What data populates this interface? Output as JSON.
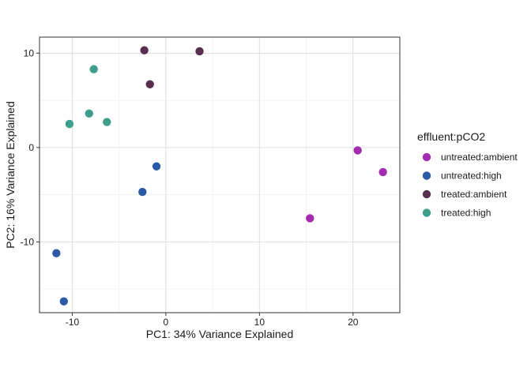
{
  "chart_data": {
    "type": "scatter",
    "xlabel": "PC1: 34% Variance Explained",
    "ylabel": "PC2: 16% Variance Explained",
    "xlim": [
      -13.5,
      25
    ],
    "ylim": [
      -17.5,
      11.7
    ],
    "xticks": [
      -10,
      0,
      10,
      20
    ],
    "yticks": [
      -10,
      0,
      10
    ],
    "xtick_labels": [
      "-10",
      "0",
      "10",
      "20"
    ],
    "ytick_labels": [
      "-10",
      "0",
      "10"
    ],
    "grid": true,
    "legend": {
      "title": "effluent:pCO2",
      "placement": "right"
    },
    "series": [
      {
        "name": "untreated:ambient",
        "color": "#A32CB0",
        "points": [
          [
            15.4,
            -7.5
          ],
          [
            20.5,
            -0.3
          ],
          [
            23.2,
            -2.6
          ]
        ]
      },
      {
        "name": "untreated:high",
        "color": "#2D5AA6",
        "points": [
          [
            -1.0,
            -2.0
          ],
          [
            -2.5,
            -4.7
          ],
          [
            -11.7,
            -11.2
          ],
          [
            -10.9,
            -16.3
          ]
        ]
      },
      {
        "name": "treated:ambient",
        "color": "#5A2E4E",
        "points": [
          [
            -2.3,
            10.3
          ],
          [
            3.6,
            10.2
          ],
          [
            -1.7,
            6.7
          ]
        ]
      },
      {
        "name": "treated:high",
        "color": "#3E9E8C",
        "points": [
          [
            -7.7,
            8.3
          ],
          [
            -8.2,
            3.6
          ],
          [
            -10.3,
            2.5
          ],
          [
            -6.3,
            2.7
          ]
        ]
      }
    ]
  }
}
